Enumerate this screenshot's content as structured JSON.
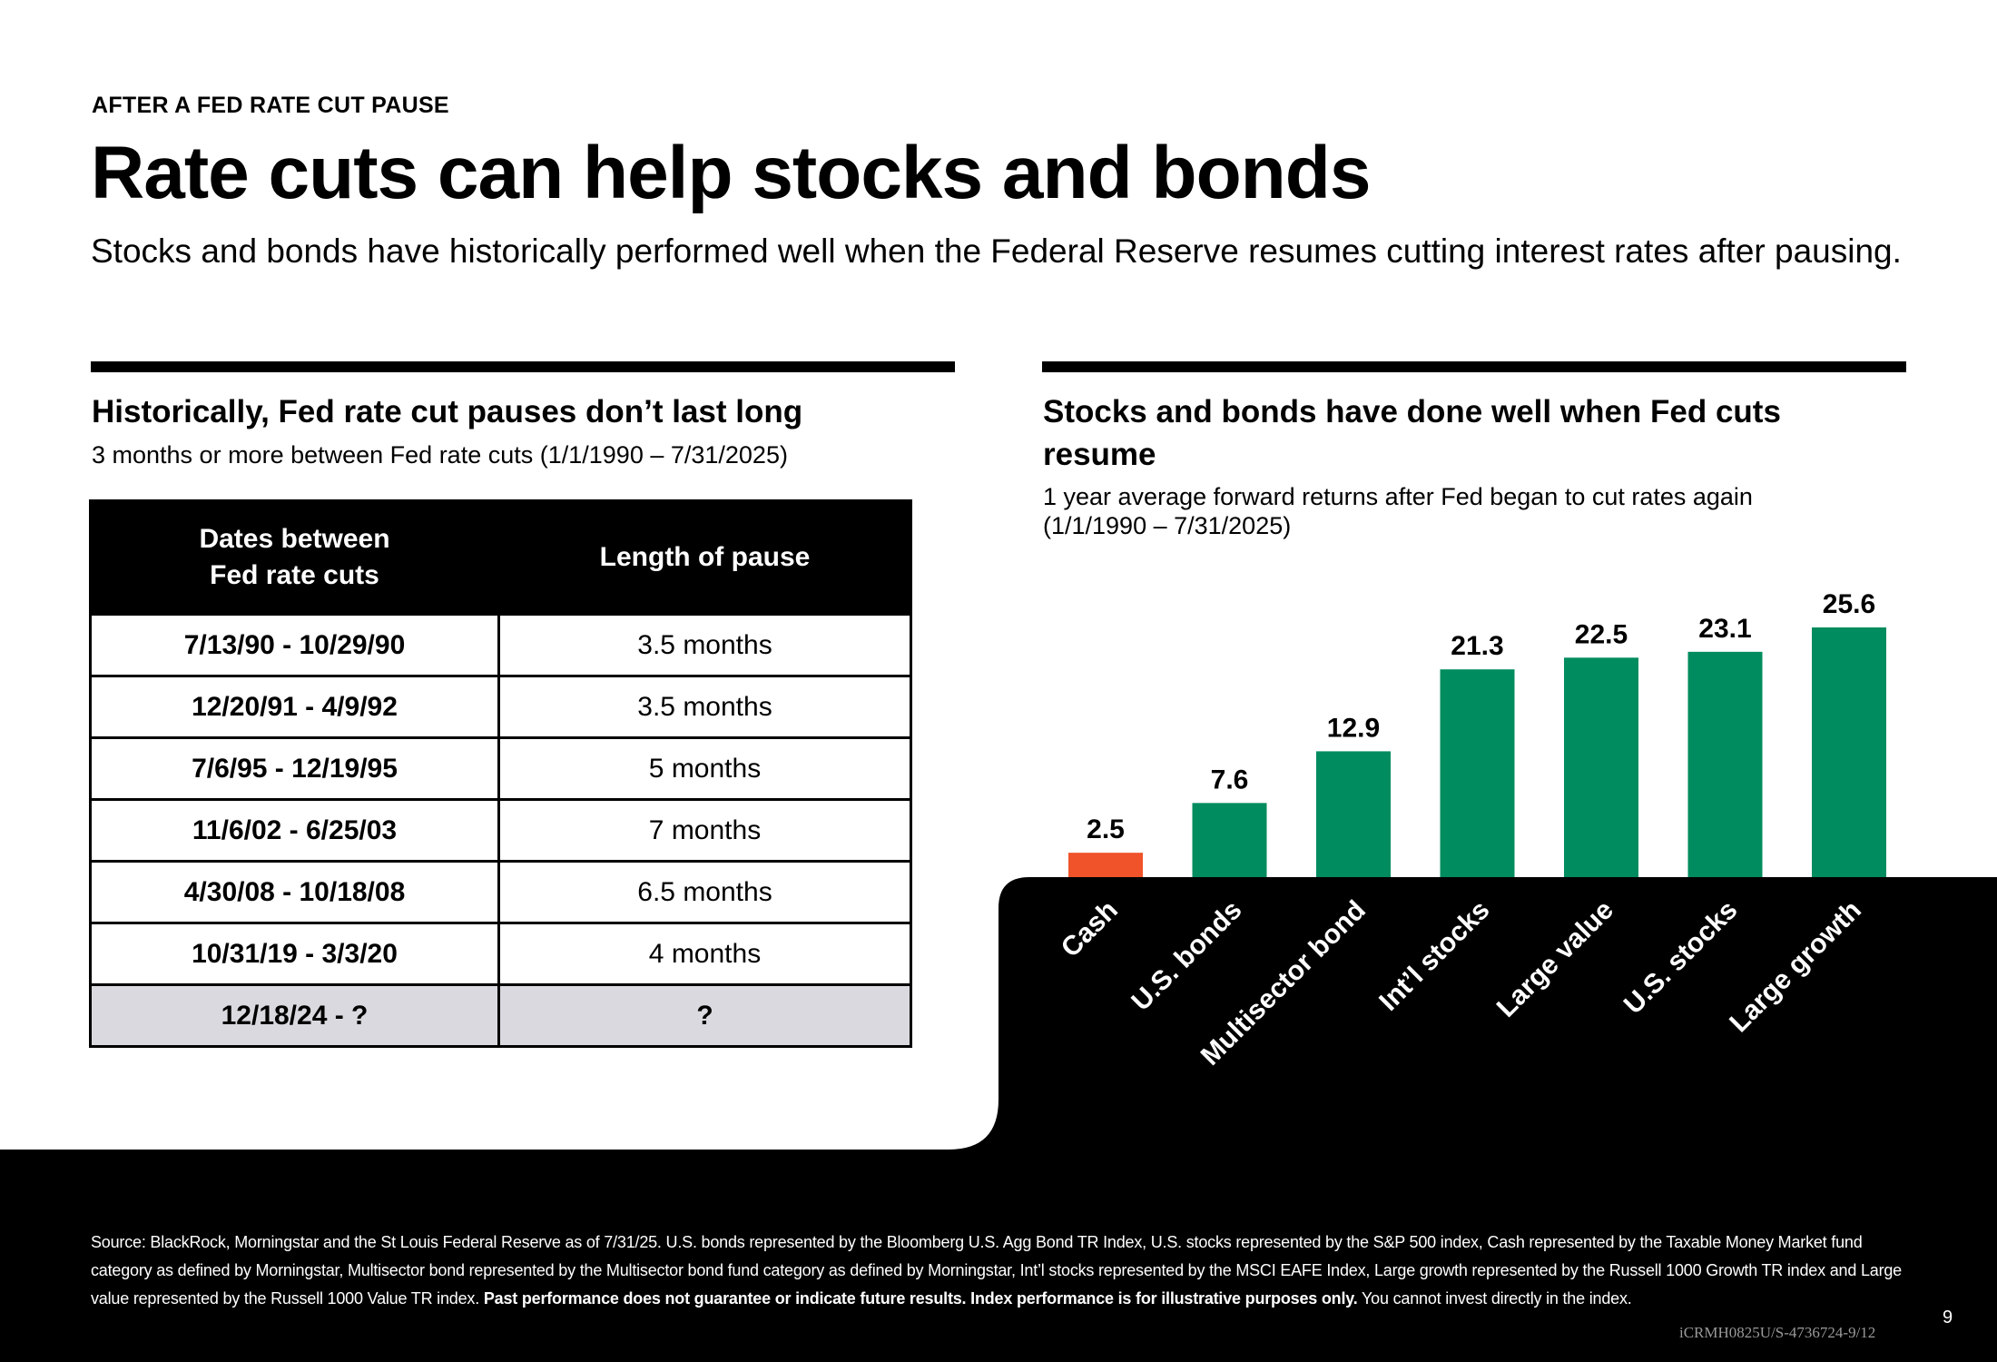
{
  "header": {
    "eyebrow": "AFTER A FED RATE CUT PAUSE",
    "title": "Rate cuts can help stocks and bonds",
    "subtitle": "Stocks and bonds have historically performed well when the Federal Reserve resumes cutting interest rates after pausing."
  },
  "left_panel": {
    "title": "Historically, Fed rate cut pauses don’t last long",
    "subtitle": "3 months or more between Fed rate cuts (1/1/1990 – 7/31/2025)",
    "table": {
      "col1_line1": "Dates between",
      "col1_line2": "Fed rate cuts",
      "col2": "Length of pause",
      "rows": [
        {
          "dates": "7/13/90 - 10/29/90",
          "length": "3.5 months"
        },
        {
          "dates": "12/20/91 - 4/9/92",
          "length": "3.5 months"
        },
        {
          "dates": "7/6/95 - 12/19/95",
          "length": "5 months"
        },
        {
          "dates": "11/6/02 - 6/25/03",
          "length": "7 months"
        },
        {
          "dates": "4/30/08 - 10/18/08",
          "length": "6.5 months"
        },
        {
          "dates": "10/31/19 - 3/3/20",
          "length": "4 months"
        },
        {
          "dates": "12/18/24 - ?",
          "length": "?"
        }
      ]
    }
  },
  "right_panel": {
    "title_line1": "Stocks and bonds have done well when Fed cuts",
    "title_line2": "resume",
    "subtitle_line1": "1 year average forward returns after Fed began to cut rates again",
    "subtitle_line2": "(1/1/1990 – 7/31/2025)"
  },
  "chart_data": {
    "type": "bar",
    "categories": [
      "Cash",
      "U.S. bonds",
      "Multisector bond",
      "Int’l stocks",
      "Large value",
      "U.S. stocks",
      "Large growth"
    ],
    "values": [
      2.5,
      7.6,
      12.9,
      21.3,
      22.5,
      23.1,
      25.6
    ],
    "data_labels": [
      "2.5",
      "7.6",
      "12.9",
      "21.3",
      "22.5",
      "23.1",
      "25.6"
    ],
    "colors": [
      "#f0532a",
      "#008c5e",
      "#008c5e",
      "#008c5e",
      "#008c5e",
      "#008c5e",
      "#008c5e"
    ],
    "ylim": [
      0,
      25.6
    ],
    "grid": false,
    "legend": "none"
  },
  "footer": {
    "source_text": "Source: BlackRock, Morningstar and the St Louis Federal Reserve as of 7/31/25. U.S. bonds represented by the Bloomberg U.S. Agg Bond TR Index, U.S. stocks represented by the S&P 500 index, Cash represented by the Taxable Money Market fund category as defined by Morningstar, Multisector bond represented by the Multisector bond fund category as defined by Morningstar, Int’l stocks represented by the MSCI EAFE Index, Large growth represented by the Russell 1000 Growth TR index and Large value represented by the Russell 1000 Value TR index.",
    "disclaimer_bold": "Past performance does not guarantee or indicate future results. Index performance is for illustrative purposes only.",
    "disclaimer_tail": "You cannot invest directly in the index.",
    "page_number": "9",
    "doc_code": "iCRMH0825U/S-4736724-9/12"
  }
}
